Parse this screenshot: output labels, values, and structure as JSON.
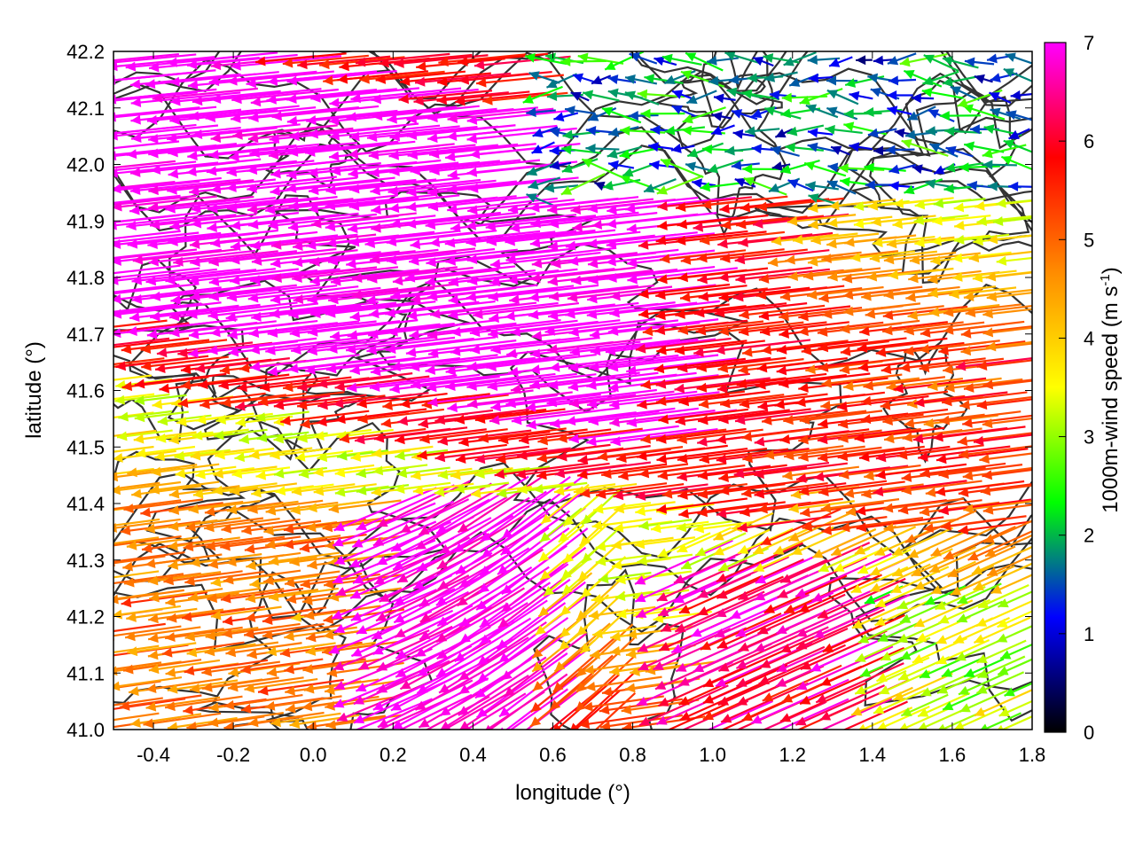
{
  "chart_data": {
    "type": "vector-field",
    "xlabel": "longitude (°)",
    "ylabel": "latitude (°)",
    "xlim": [
      -0.5,
      1.8
    ],
    "ylim": [
      41.0,
      42.2
    ],
    "x_ticks": [
      -0.4,
      -0.2,
      0.0,
      0.2,
      0.4,
      0.6,
      0.8,
      1.0,
      1.2,
      1.4,
      1.6,
      1.8
    ],
    "x_tick_labels": [
      "-0.4",
      "-0.2",
      "0.0",
      "0.2",
      "0.4",
      "0.6",
      "0.8",
      "1.0",
      "1.2",
      "1.4",
      "1.6",
      "1.8"
    ],
    "y_ticks": [
      41.0,
      41.1,
      41.2,
      41.3,
      41.4,
      41.5,
      41.6,
      41.7,
      41.8,
      41.9,
      42.0,
      42.1,
      42.2
    ],
    "y_tick_labels": [
      "41.0",
      "41.1",
      "41.2",
      "41.3",
      "41.4",
      "41.5",
      "41.6",
      "41.7",
      "41.8",
      "41.9",
      "42.0",
      "42.1",
      "42.2"
    ],
    "colorbar": {
      "label_main": "1000m-wind speed (m s",
      "label_sup": "-1",
      "label_close": ")",
      "range": [
        0,
        7
      ],
      "ticks": [
        0,
        1,
        2,
        3,
        4,
        5,
        6,
        7
      ],
      "tick_labels": [
        "0",
        "1",
        "2",
        "3",
        "4",
        "5",
        "6",
        "7"
      ],
      "palette": [
        "#000000",
        "#0000ff",
        "#00ff00",
        "#ffff00",
        "#ff8c00",
        "#ff0000",
        "#ff00ff"
      ]
    },
    "wind_regions": [
      {
        "name": "upper-west magenta band",
        "speed_m_s": 7.0,
        "direction": "westward"
      },
      {
        "name": "north-center red/orange",
        "speed_m_s": 5.3,
        "direction": "westward"
      },
      {
        "name": "north-east blue/green weak flow",
        "speed_m_s": 1.5,
        "direction": "variable"
      },
      {
        "name": "east red/orange",
        "speed_m_s": 5.0,
        "direction": "westward"
      },
      {
        "name": "south-west orange",
        "speed_m_s": 4.5,
        "direction": "westward"
      },
      {
        "name": "south-center magenta funnel",
        "speed_m_s": 7.0,
        "direction": "south-westward"
      },
      {
        "name": "south-east red/magenta",
        "speed_m_s": 6.0,
        "direction": "south-westward"
      },
      {
        "name": "south-east corner yellow/green",
        "speed_m_s": 3.0,
        "direction": "south-westward"
      }
    ],
    "contours": {
      "color": "#333333",
      "count": 22
    },
    "grid": false
  }
}
